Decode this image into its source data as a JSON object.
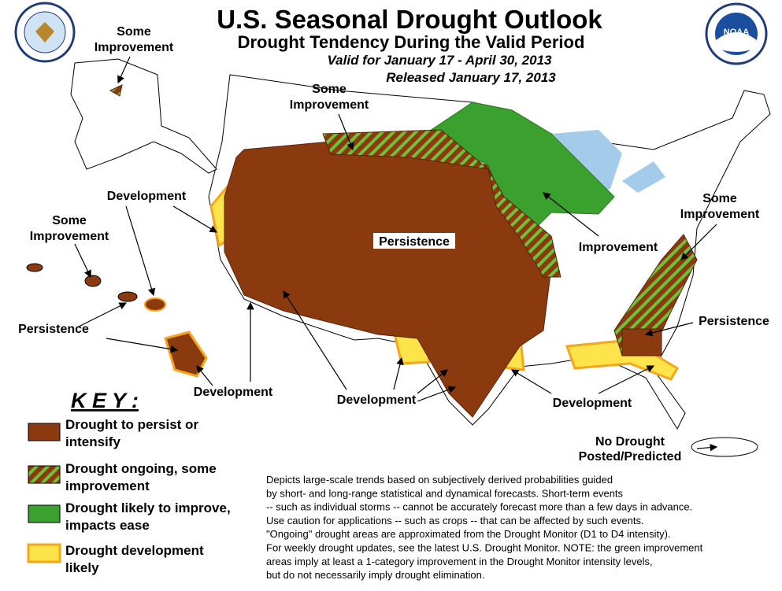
{
  "header": {
    "title": "U.S. Seasonal Drought Outlook",
    "subtitle": "Drought Tendency During the Valid Period",
    "valid": "Valid for January 17 - April 30, 2013",
    "released": "Released January 17, 2013"
  },
  "map_labels": [
    {
      "lines": [
        "Some",
        "Improvement"
      ]
    },
    {
      "lines": [
        "Some",
        "Improvement"
      ]
    },
    {
      "lines": [
        "Development"
      ]
    },
    {
      "lines": [
        "Some",
        "Improvement"
      ]
    },
    {
      "lines": [
        "Persistence"
      ]
    },
    {
      "lines": [
        "Improvement"
      ]
    },
    {
      "lines": [
        "Some",
        "Improvement"
      ]
    },
    {
      "lines": [
        "Persistence"
      ]
    },
    {
      "lines": [
        "Persistence"
      ]
    },
    {
      "lines": [
        "Development"
      ]
    },
    {
      "lines": [
        "Development"
      ]
    },
    {
      "lines": [
        "Development"
      ]
    },
    {
      "lines": [
        "No Drought",
        "Posted/Predicted"
      ]
    }
  ],
  "key": {
    "title": "K E Y :",
    "items": [
      {
        "lines": [
          "Drought to persist or",
          "intensify"
        ]
      },
      {
        "lines": [
          "Drought ongoing, some",
          "improvement"
        ]
      },
      {
        "lines": [
          "Drought likely to improve,",
          "impacts ease"
        ]
      },
      {
        "lines": [
          "Drought development",
          "likely"
        ]
      }
    ]
  },
  "notes": [
    "Depicts large-scale trends based on subjectively derived probabilities guided",
    "by short- and long-range statistical and dynamical forecasts. Short-term events",
    "-- such as individual storms -- cannot be accurately forecast more than a few days in advance.",
    "Use caution for applications -- such as crops -- that can be affected by such events.",
    "\"Ongoing\" drought areas are approximated from the Drought Monitor (D1 to D4 intensity).",
    "For weekly drought updates, see the latest U.S. Drought Monitor. NOTE: the green improvement",
    "areas imply at least a 1-category improvement in the Drought Monitor intensity levels,",
    "but do not necessarily imply drought elimination."
  ]
}
